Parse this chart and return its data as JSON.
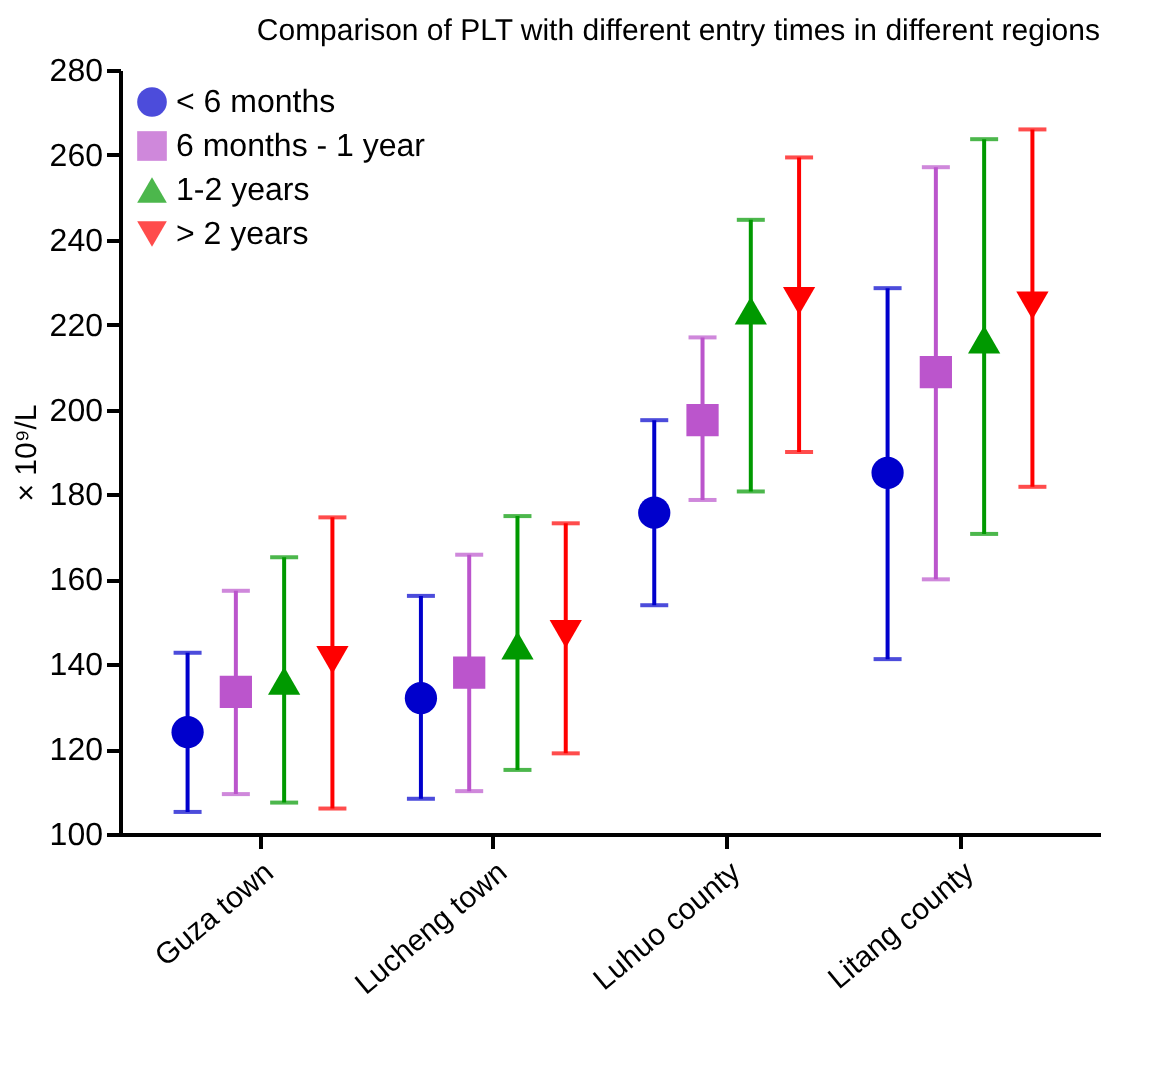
{
  "chart_data": {
    "type": "scatter",
    "title": "Comparison of PLT with different entry times in different regions",
    "ylabel": "× 10⁹/L",
    "categories": [
      "Guza town",
      "Lucheng town",
      "Luhuo county",
      "Litang county"
    ],
    "ylim": [
      100,
      280
    ],
    "yticks": [
      100,
      120,
      140,
      160,
      180,
      200,
      220,
      240,
      260,
      280
    ],
    "grid": false,
    "legend": "top left",
    "series": [
      {
        "name": "< 6 months",
        "color": "#0000cc",
        "marker": "circle",
        "values": [
          124,
          132,
          175.7,
          185.1
        ],
        "errors": [
          [
            105.2,
            142.7
          ],
          [
            108.3,
            156.1
          ],
          [
            153.9,
            197.5
          ],
          [
            141.2,
            228.6
          ]
        ]
      },
      {
        "name": "6 months - 1 year",
        "color": "#bb55cc",
        "marker": "square",
        "values": [
          133.5,
          138,
          197.5,
          208.8
        ],
        "errors": [
          [
            109.4,
            157.3
          ],
          [
            110.1,
            165.8
          ],
          [
            178.7,
            217
          ],
          [
            160,
            257.1
          ]
        ]
      },
      {
        "name": "1-2 years",
        "color": "#009900",
        "marker": "triangle",
        "values": [
          136.1,
          144.4,
          223.3,
          216.5
        ],
        "errors": [
          [
            107.4,
            165.2
          ],
          [
            115.1,
            174.9
          ],
          [
            180.7,
            244.7
          ],
          [
            170.7,
            263.7
          ]
        ]
      },
      {
        "name": "> 2 years",
        "color": "#ff0000",
        "marker": "triangle-down",
        "values": [
          141,
          147.1,
          225.6,
          224.5
        ],
        "errors": [
          [
            106,
            174.6
          ],
          [
            119,
            173.2
          ],
          [
            190,
            259.4
          ],
          [
            181.8,
            266
          ]
        ]
      }
    ]
  }
}
